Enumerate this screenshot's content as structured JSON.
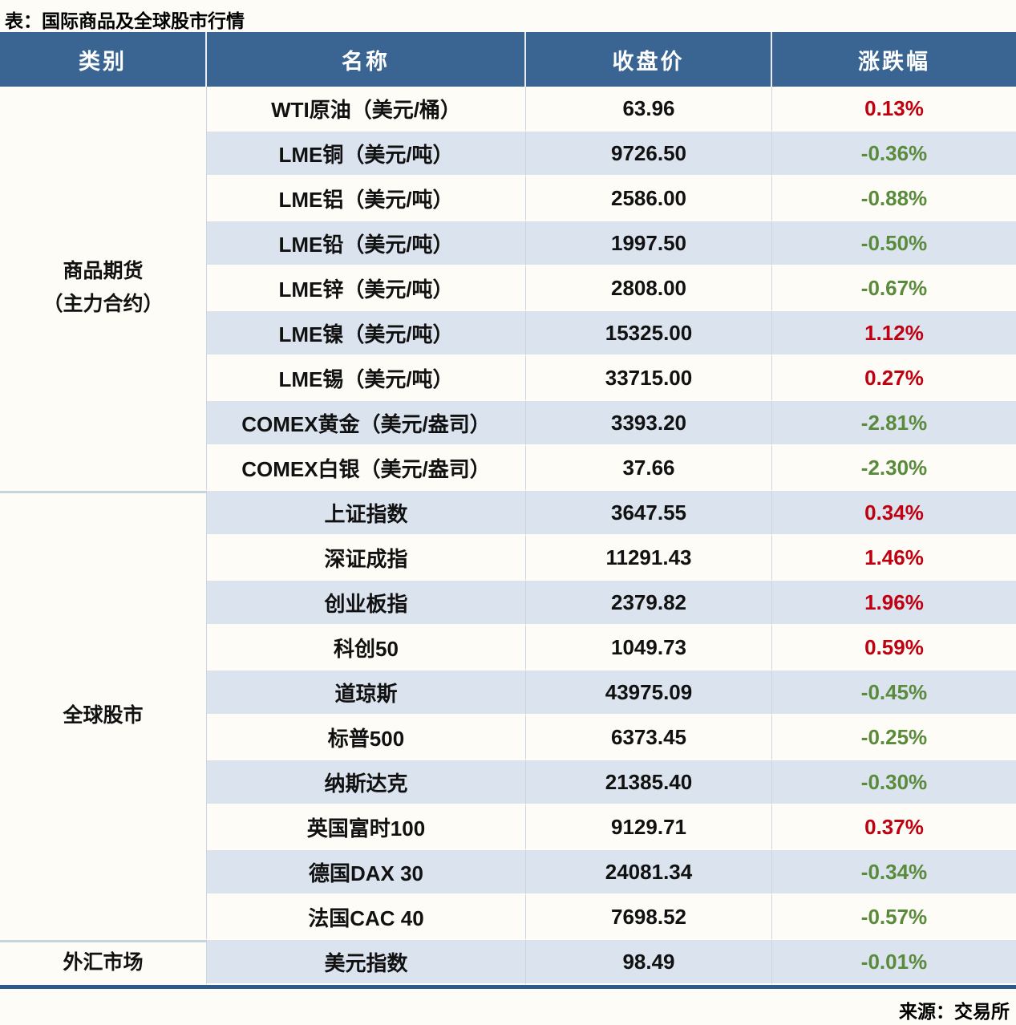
{
  "colors": {
    "paper": "#FDFCF6",
    "header_bg": "#3A6492",
    "header_text": "#FFFFFF",
    "stripe": "#DAE3EE",
    "up": "#C00010",
    "down": "#5A8A3C",
    "bottom_border": "#2D5A88"
  },
  "chart_data": {
    "type": "table",
    "title": "表：国际商品及全球股市行情",
    "source": "来源：交易所",
    "columns": [
      "类别",
      "名称",
      "收盘价",
      "涨跌幅"
    ],
    "groups": [
      {
        "category_lines": [
          "商品期货",
          "（主力合约）"
        ],
        "rows": [
          {
            "name": "WTI原油（美元/桶）",
            "close": "63.96",
            "change": "0.13%",
            "direction": "up"
          },
          {
            "name": "LME铜（美元/吨）",
            "close": "9726.50",
            "change": "-0.36%",
            "direction": "down"
          },
          {
            "name": "LME铝（美元/吨）",
            "close": "2586.00",
            "change": "-0.88%",
            "direction": "down"
          },
          {
            "name": "LME铅（美元/吨）",
            "close": "1997.50",
            "change": "-0.50%",
            "direction": "down"
          },
          {
            "name": "LME锌（美元/吨）",
            "close": "2808.00",
            "change": "-0.67%",
            "direction": "down"
          },
          {
            "name": "LME镍（美元/吨）",
            "close": "15325.00",
            "change": "1.12%",
            "direction": "up"
          },
          {
            "name": "LME锡（美元/吨）",
            "close": "33715.00",
            "change": "0.27%",
            "direction": "up"
          },
          {
            "name": "COMEX黄金（美元/盎司）",
            "close": "3393.20",
            "change": "-2.81%",
            "direction": "down"
          },
          {
            "name": "COMEX白银（美元/盎司）",
            "close": "37.66",
            "change": "-2.30%",
            "direction": "down"
          }
        ]
      },
      {
        "category_lines": [
          "全球股市"
        ],
        "rows": [
          {
            "name": "上证指数",
            "close": "3647.55",
            "change": "0.34%",
            "direction": "up"
          },
          {
            "name": "深证成指",
            "close": "11291.43",
            "change": "1.46%",
            "direction": "up"
          },
          {
            "name": "创业板指",
            "close": "2379.82",
            "change": "1.96%",
            "direction": "up"
          },
          {
            "name": "科创50",
            "close": "1049.73",
            "change": "0.59%",
            "direction": "up"
          },
          {
            "name": "道琼斯",
            "close": "43975.09",
            "change": "-0.45%",
            "direction": "down"
          },
          {
            "name": "标普500",
            "close": "6373.45",
            "change": "-0.25%",
            "direction": "down"
          },
          {
            "name": "纳斯达克",
            "close": "21385.40",
            "change": "-0.30%",
            "direction": "down"
          },
          {
            "name": "英国富时100",
            "close": "9129.71",
            "change": "0.37%",
            "direction": "up"
          },
          {
            "name": "德国DAX 30",
            "close": "24081.34",
            "change": "-0.34%",
            "direction": "down"
          },
          {
            "name": "法国CAC 40",
            "close": "7698.52",
            "change": "-0.57%",
            "direction": "down"
          }
        ]
      },
      {
        "category_lines": [
          "外汇市场"
        ],
        "rows": [
          {
            "name": "美元指数",
            "close": "98.49",
            "change": "-0.01%",
            "direction": "down"
          }
        ]
      }
    ]
  }
}
